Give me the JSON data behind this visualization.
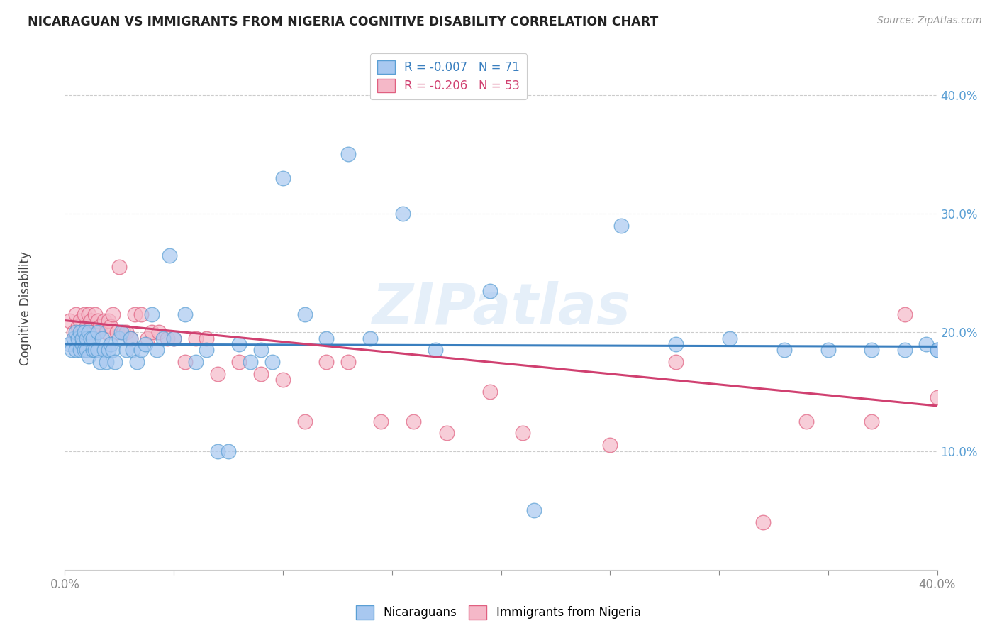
{
  "title": "NICARAGUAN VS IMMIGRANTS FROM NIGERIA COGNITIVE DISABILITY CORRELATION CHART",
  "source": "Source: ZipAtlas.com",
  "ylabel": "Cognitive Disability",
  "right_yticks": [
    0.1,
    0.2,
    0.3,
    0.4
  ],
  "right_yticklabels": [
    "10.0%",
    "20.0%",
    "30.0%",
    "40.0%"
  ],
  "xlim": [
    0.0,
    0.4
  ],
  "ylim": [
    0.0,
    0.44
  ],
  "blue_color": "#A8C8F0",
  "pink_color": "#F5B8C8",
  "blue_edge_color": "#5A9FD4",
  "pink_edge_color": "#E06080",
  "blue_line_color": "#3A7FBF",
  "pink_line_color": "#D04070",
  "legend_R1": "R = -0.007",
  "legend_N1": "N = 71",
  "legend_R2": "R = -0.206",
  "legend_N2": "N = 53",
  "watermark": "ZIPatlas",
  "blue_scatter_x": [
    0.002,
    0.003,
    0.004,
    0.005,
    0.005,
    0.006,
    0.007,
    0.007,
    0.008,
    0.008,
    0.009,
    0.009,
    0.01,
    0.01,
    0.011,
    0.011,
    0.012,
    0.013,
    0.013,
    0.014,
    0.015,
    0.015,
    0.016,
    0.017,
    0.018,
    0.019,
    0.02,
    0.021,
    0.022,
    0.023,
    0.025,
    0.026,
    0.028,
    0.03,
    0.031,
    0.033,
    0.035,
    0.037,
    0.04,
    0.042,
    0.045,
    0.048,
    0.05,
    0.055,
    0.06,
    0.065,
    0.07,
    0.075,
    0.08,
    0.085,
    0.09,
    0.095,
    0.1,
    0.11,
    0.12,
    0.13,
    0.14,
    0.155,
    0.17,
    0.195,
    0.215,
    0.255,
    0.28,
    0.305,
    0.33,
    0.35,
    0.37,
    0.385,
    0.395,
    0.4,
    0.4
  ],
  "blue_scatter_y": [
    0.19,
    0.185,
    0.195,
    0.2,
    0.185,
    0.195,
    0.2,
    0.185,
    0.19,
    0.195,
    0.185,
    0.2,
    0.185,
    0.195,
    0.18,
    0.2,
    0.195,
    0.185,
    0.195,
    0.185,
    0.2,
    0.185,
    0.175,
    0.195,
    0.185,
    0.175,
    0.185,
    0.19,
    0.185,
    0.175,
    0.195,
    0.2,
    0.185,
    0.195,
    0.185,
    0.175,
    0.185,
    0.19,
    0.215,
    0.185,
    0.195,
    0.265,
    0.195,
    0.215,
    0.175,
    0.185,
    0.1,
    0.1,
    0.19,
    0.175,
    0.185,
    0.175,
    0.33,
    0.215,
    0.195,
    0.35,
    0.195,
    0.3,
    0.185,
    0.235,
    0.05,
    0.29,
    0.19,
    0.195,
    0.185,
    0.185,
    0.185,
    0.185,
    0.19,
    0.185,
    0.185
  ],
  "pink_scatter_x": [
    0.002,
    0.004,
    0.005,
    0.006,
    0.007,
    0.008,
    0.009,
    0.01,
    0.011,
    0.012,
    0.013,
    0.014,
    0.015,
    0.016,
    0.018,
    0.019,
    0.02,
    0.021,
    0.022,
    0.024,
    0.025,
    0.027,
    0.028,
    0.03,
    0.032,
    0.035,
    0.038,
    0.04,
    0.043,
    0.047,
    0.05,
    0.055,
    0.06,
    0.065,
    0.07,
    0.08,
    0.09,
    0.1,
    0.11,
    0.12,
    0.13,
    0.145,
    0.16,
    0.175,
    0.195,
    0.21,
    0.25,
    0.28,
    0.32,
    0.34,
    0.37,
    0.385,
    0.4
  ],
  "pink_scatter_y": [
    0.21,
    0.2,
    0.215,
    0.205,
    0.21,
    0.2,
    0.215,
    0.205,
    0.215,
    0.21,
    0.2,
    0.215,
    0.21,
    0.205,
    0.21,
    0.2,
    0.21,
    0.205,
    0.215,
    0.2,
    0.255,
    0.2,
    0.2,
    0.195,
    0.215,
    0.215,
    0.195,
    0.2,
    0.2,
    0.195,
    0.195,
    0.175,
    0.195,
    0.195,
    0.165,
    0.175,
    0.165,
    0.16,
    0.125,
    0.175,
    0.175,
    0.125,
    0.125,
    0.115,
    0.15,
    0.115,
    0.105,
    0.175,
    0.04,
    0.125,
    0.125,
    0.215,
    0.145
  ],
  "blue_trend_x": [
    0.0,
    0.4
  ],
  "blue_trend_y": [
    0.19,
    0.188
  ],
  "pink_trend_x": [
    0.0,
    0.4
  ],
  "pink_trend_y": [
    0.21,
    0.138
  ],
  "xtick_positions": [
    0.0,
    0.05,
    0.1,
    0.15,
    0.2,
    0.25,
    0.3,
    0.35,
    0.4
  ],
  "xtick_labels_show": [
    "0.0%",
    "",
    "",
    "",
    "",
    "",
    "",
    "",
    "40.0%"
  ]
}
